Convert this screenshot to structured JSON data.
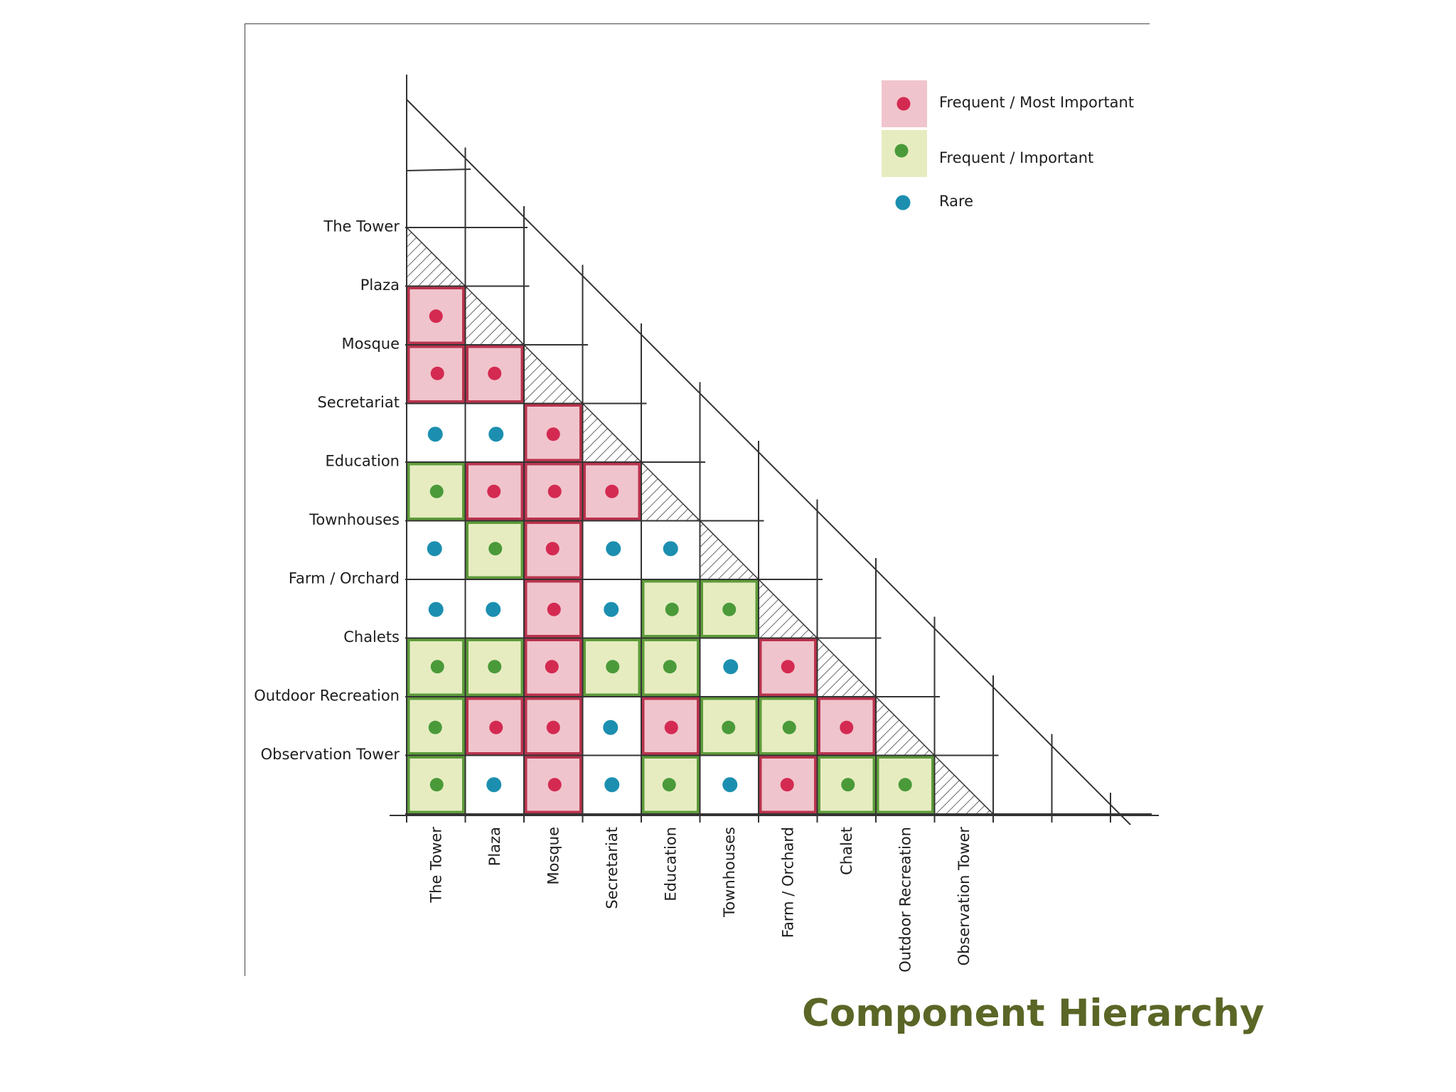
{
  "title": "Component Hierarchy",
  "legend": [
    {
      "key": "most",
      "label": "Frequent / Most Important"
    },
    {
      "key": "important",
      "label": "Frequent / Important"
    },
    {
      "key": "rare",
      "label": "Rare"
    }
  ],
  "colors": {
    "most_fill": "#f0c4cc",
    "most_border": "#b9334e",
    "most_dot": "#d42a52",
    "important_fill": "#e6ecc0",
    "important_border": "#5d9b3a",
    "important_dot": "#4a9a3a",
    "rare_dot": "#1c8fb0",
    "line": "#333333",
    "title": "#5a6626"
  },
  "row_labels": [
    "The Tower",
    "Plaza",
    "Mosque",
    "Secretariat",
    "Education",
    "Townhouses",
    "Farm / Orchard",
    "Chalets",
    "Outdoor Recreation",
    "Observation Tower"
  ],
  "col_labels": [
    "The Tower",
    "Plaza",
    "Mosque",
    "Secretariat",
    "Education",
    "Townhouses",
    "Farm / Orchard",
    "Chalet",
    "Outdoor Recreation",
    "Observation Tower"
  ],
  "matrix": [
    [],
    [
      "most"
    ],
    [
      "most",
      "most"
    ],
    [
      "rare",
      "rare",
      "most"
    ],
    [
      "important",
      "most",
      "most",
      "most"
    ],
    [
      "rare",
      "important",
      "most",
      "rare",
      "rare"
    ],
    [
      "rare",
      "rare",
      "most",
      "rare",
      "important",
      "important"
    ],
    [
      "important",
      "important",
      "most",
      "important",
      "important",
      "rare",
      "most"
    ],
    [
      "important",
      "most",
      "most",
      "rare",
      "most",
      "important",
      "important",
      "most"
    ],
    [
      "important",
      "rare",
      "most",
      "rare",
      "important",
      "rare",
      "most",
      "important",
      "important"
    ]
  ]
}
